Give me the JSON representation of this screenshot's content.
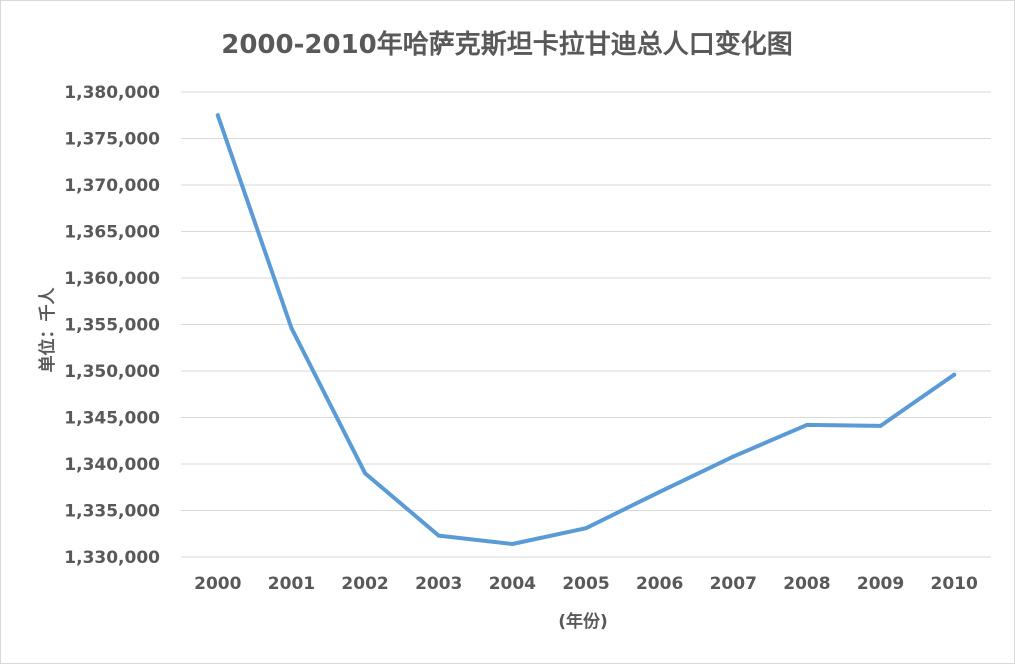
{
  "chart_data": {
    "type": "line",
    "title": "2000-2010年哈萨克斯坦卡拉甘迪总人口变化图",
    "xlabel": "(年份)",
    "ylabel": "单位：千人",
    "categories": [
      "2000",
      "2001",
      "2002",
      "2003",
      "2004",
      "2005",
      "2006",
      "2007",
      "2008",
      "2009",
      "2010"
    ],
    "series": [
      {
        "values": [
          1377500,
          1354600,
          1339000,
          1332300,
          1331400,
          1333100,
          1337000,
          1340800,
          1344200,
          1344100,
          1349600
        ],
        "color": "#5b9bd5"
      }
    ],
    "ylim": [
      1330000,
      1380000
    ],
    "yticks": [
      1330000,
      1335000,
      1340000,
      1345000,
      1350000,
      1355000,
      1360000,
      1365000,
      1370000,
      1375000,
      1380000
    ],
    "ytick_labels": [
      "1,330,000",
      "1,335,000",
      "1,340,000",
      "1,345,000",
      "1,350,000",
      "1,355,000",
      "1,360,000",
      "1,365,000",
      "1,370,000",
      "1,375,000",
      "1,380,000"
    ],
    "grid": true,
    "legend": "none",
    "colors": {
      "gridline": "#d9d9d9",
      "text": "#595959",
      "border": "#d9d9d9"
    }
  }
}
